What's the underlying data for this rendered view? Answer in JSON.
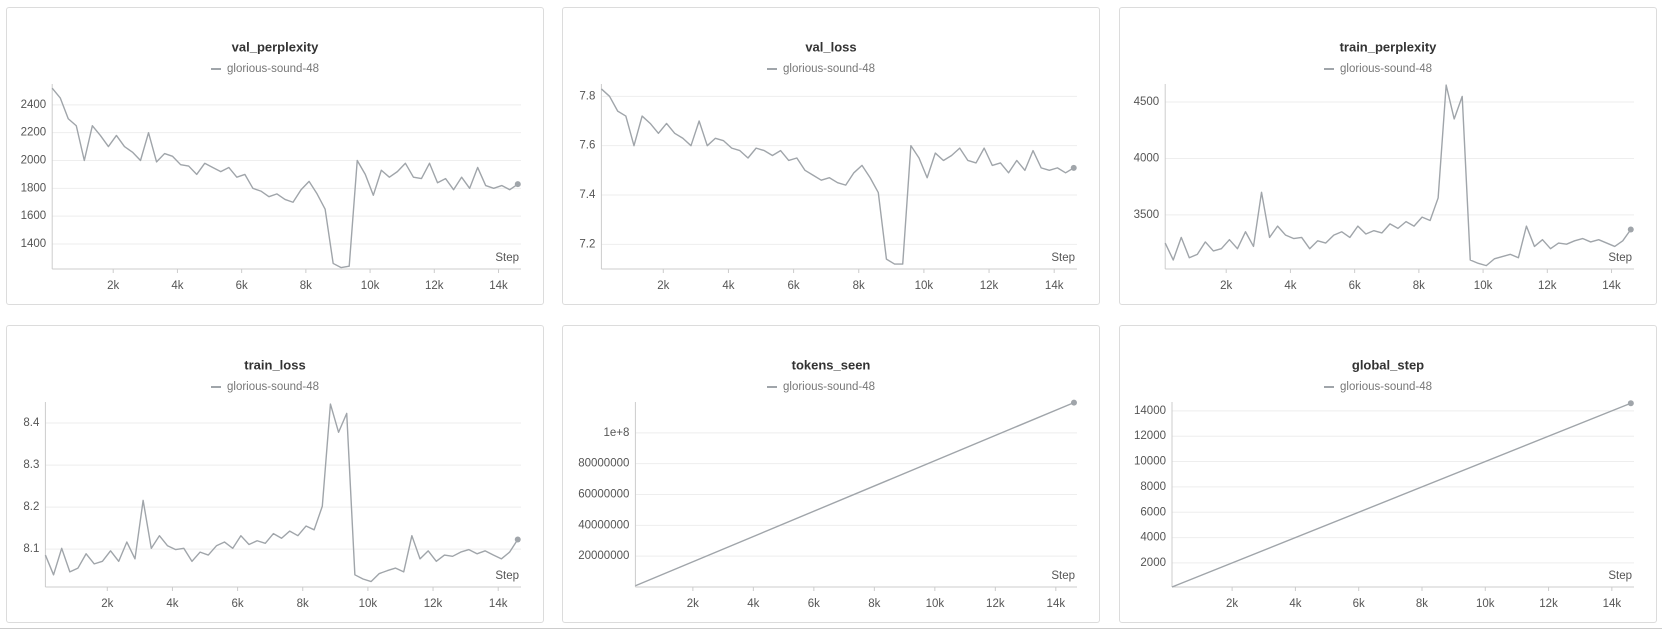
{
  "chart_data": [
    {
      "type": "line",
      "title": "val_perplexity",
      "x_label": "Step",
      "x": [
        100,
        350,
        600,
        850,
        1100,
        1350,
        1600,
        1850,
        2100,
        2350,
        2600,
        2850,
        3100,
        3350,
        3600,
        3850,
        4100,
        4350,
        4600,
        4850,
        5100,
        5350,
        5600,
        5850,
        6100,
        6350,
        6600,
        6850,
        7100,
        7350,
        7600,
        7850,
        8100,
        8350,
        8600,
        8850,
        9100,
        9350,
        9600,
        9850,
        10100,
        10350,
        10600,
        10850,
        11100,
        11350,
        11600,
        11850,
        12100,
        12350,
        12600,
        12850,
        13100,
        13350,
        13600,
        13850,
        14100,
        14350,
        14600
      ],
      "series": [
        {
          "name": "glorious-sound-48",
          "color": "#a0a5aa",
          "values": [
            2520,
            2450,
            2300,
            2250,
            2000,
            2250,
            2180,
            2100,
            2180,
            2100,
            2060,
            2000,
            2200,
            1990,
            2050,
            2030,
            1970,
            1960,
            1900,
            1980,
            1950,
            1920,
            1950,
            1880,
            1900,
            1800,
            1780,
            1740,
            1760,
            1720,
            1700,
            1790,
            1850,
            1760,
            1650,
            1260,
            1230,
            1240,
            2000,
            1900,
            1750,
            1930,
            1880,
            1920,
            1980,
            1880,
            1870,
            1980,
            1840,
            1870,
            1790,
            1880,
            1800,
            1950,
            1820,
            1800,
            1820,
            1790,
            1830
          ]
        }
      ],
      "xlim": [
        100,
        14700
      ],
      "xticks": [
        {
          "value": 2000,
          "label": "2k"
        },
        {
          "value": 4000,
          "label": "4k"
        },
        {
          "value": 6000,
          "label": "6k"
        },
        {
          "value": 8000,
          "label": "8k"
        },
        {
          "value": 10000,
          "label": "10k"
        },
        {
          "value": 12000,
          "label": "12k"
        },
        {
          "value": 14000,
          "label": "14k"
        }
      ],
      "ylim": [
        1220,
        2550
      ],
      "yticks": [
        1400,
        1600,
        1800,
        2000,
        2200,
        2400
      ],
      "grid": true
    },
    {
      "type": "line",
      "title": "val_loss",
      "x_label": "Step",
      "x": [
        100,
        350,
        600,
        850,
        1100,
        1350,
        1600,
        1850,
        2100,
        2350,
        2600,
        2850,
        3100,
        3350,
        3600,
        3850,
        4100,
        4350,
        4600,
        4850,
        5100,
        5350,
        5600,
        5850,
        6100,
        6350,
        6600,
        6850,
        7100,
        7350,
        7600,
        7850,
        8100,
        8350,
        8600,
        8850,
        9100,
        9350,
        9600,
        9850,
        10100,
        10350,
        10600,
        10850,
        11100,
        11350,
        11600,
        11850,
        12100,
        12350,
        12600,
        12850,
        13100,
        13350,
        13600,
        13850,
        14100,
        14350,
        14600
      ],
      "series": [
        {
          "name": "glorious-sound-48",
          "color": "#a0a5aa",
          "values": [
            7.83,
            7.8,
            7.74,
            7.72,
            7.6,
            7.72,
            7.69,
            7.65,
            7.69,
            7.65,
            7.63,
            7.6,
            7.7,
            7.6,
            7.63,
            7.62,
            7.59,
            7.58,
            7.55,
            7.59,
            7.58,
            7.56,
            7.58,
            7.54,
            7.55,
            7.5,
            7.48,
            7.46,
            7.47,
            7.45,
            7.44,
            7.49,
            7.52,
            7.47,
            7.41,
            7.14,
            7.12,
            7.12,
            7.6,
            7.55,
            7.47,
            7.57,
            7.54,
            7.56,
            7.59,
            7.54,
            7.53,
            7.59,
            7.52,
            7.53,
            7.49,
            7.54,
            7.5,
            7.58,
            7.51,
            7.5,
            7.51,
            7.49,
            7.51
          ]
        }
      ],
      "xlim": [
        100,
        14700
      ],
      "xticks": [
        {
          "value": 2000,
          "label": "2k"
        },
        {
          "value": 4000,
          "label": "4k"
        },
        {
          "value": 6000,
          "label": "6k"
        },
        {
          "value": 8000,
          "label": "8k"
        },
        {
          "value": 10000,
          "label": "10k"
        },
        {
          "value": 12000,
          "label": "12k"
        },
        {
          "value": 14000,
          "label": "14k"
        }
      ],
      "ylim": [
        7.1,
        7.85
      ],
      "yticks": [
        7.2,
        7.4,
        7.6,
        7.8
      ],
      "grid": true
    },
    {
      "type": "line",
      "title": "train_perplexity",
      "x_label": "Step",
      "x": [
        100,
        350,
        600,
        850,
        1100,
        1350,
        1600,
        1850,
        2100,
        2350,
        2600,
        2850,
        3100,
        3350,
        3600,
        3850,
        4100,
        4350,
        4600,
        4850,
        5100,
        5350,
        5600,
        5850,
        6100,
        6350,
        6600,
        6850,
        7100,
        7350,
        7600,
        7850,
        8100,
        8350,
        8600,
        8850,
        9100,
        9350,
        9600,
        9850,
        10100,
        10350,
        10600,
        10850,
        11100,
        11350,
        11600,
        11850,
        12100,
        12350,
        12600,
        12850,
        13100,
        13350,
        13600,
        13850,
        14100,
        14350,
        14600
      ],
      "series": [
        {
          "name": "glorious-sound-48",
          "color": "#a0a5aa",
          "values": [
            3250,
            3100,
            3300,
            3120,
            3150,
            3260,
            3180,
            3200,
            3280,
            3200,
            3350,
            3220,
            3700,
            3300,
            3400,
            3320,
            3290,
            3300,
            3200,
            3270,
            3250,
            3320,
            3350,
            3300,
            3400,
            3330,
            3360,
            3340,
            3420,
            3380,
            3440,
            3400,
            3480,
            3450,
            3650,
            4650,
            4350,
            4550,
            3100,
            3070,
            3050,
            3110,
            3130,
            3150,
            3120,
            3400,
            3220,
            3280,
            3200,
            3250,
            3240,
            3270,
            3290,
            3260,
            3280,
            3250,
            3220,
            3270,
            3370
          ]
        }
      ],
      "xlim": [
        100,
        14700
      ],
      "xticks": [
        {
          "value": 2000,
          "label": "2k"
        },
        {
          "value": 4000,
          "label": "4k"
        },
        {
          "value": 6000,
          "label": "6k"
        },
        {
          "value": 8000,
          "label": "8k"
        },
        {
          "value": 10000,
          "label": "10k"
        },
        {
          "value": 12000,
          "label": "12k"
        },
        {
          "value": 14000,
          "label": "14k"
        }
      ],
      "ylim": [
        3020,
        4660
      ],
      "yticks": [
        3500,
        4000,
        4500
      ],
      "grid": true
    },
    {
      "type": "line",
      "title": "train_loss",
      "x_label": "Step",
      "x": [
        100,
        350,
        600,
        850,
        1100,
        1350,
        1600,
        1850,
        2100,
        2350,
        2600,
        2850,
        3100,
        3350,
        3600,
        3850,
        4100,
        4350,
        4600,
        4850,
        5100,
        5350,
        5600,
        5850,
        6100,
        6350,
        6600,
        6850,
        7100,
        7350,
        7600,
        7850,
        8100,
        8350,
        8600,
        8850,
        9100,
        9350,
        9600,
        9850,
        10100,
        10350,
        10600,
        10850,
        11100,
        11350,
        11600,
        11850,
        12100,
        12350,
        12600,
        12850,
        13100,
        13350,
        13600,
        13850,
        14100,
        14350,
        14600
      ],
      "series": [
        {
          "name": "glorious-sound-48",
          "color": "#a0a5aa",
          "values": [
            8.086,
            8.039,
            8.102,
            8.046,
            8.055,
            8.089,
            8.065,
            8.071,
            8.096,
            8.071,
            8.117,
            8.077,
            8.216,
            8.102,
            8.132,
            8.108,
            8.099,
            8.102,
            8.071,
            8.093,
            8.086,
            8.108,
            8.117,
            8.102,
            8.132,
            8.111,
            8.12,
            8.114,
            8.137,
            8.126,
            8.143,
            8.132,
            8.155,
            8.146,
            8.202,
            8.445,
            8.378,
            8.423,
            8.039,
            8.029,
            8.023,
            8.042,
            8.049,
            8.055,
            8.046,
            8.132,
            8.077,
            8.096,
            8.071,
            8.086,
            8.083,
            8.093,
            8.099,
            8.089,
            8.096,
            8.086,
            8.077,
            8.093,
            8.123
          ]
        }
      ],
      "xlim": [
        100,
        14700
      ],
      "xticks": [
        {
          "value": 2000,
          "label": "2k"
        },
        {
          "value": 4000,
          "label": "4k"
        },
        {
          "value": 6000,
          "label": "6k"
        },
        {
          "value": 8000,
          "label": "8k"
        },
        {
          "value": 10000,
          "label": "10k"
        },
        {
          "value": 12000,
          "label": "12k"
        },
        {
          "value": 14000,
          "label": "14k"
        }
      ],
      "ylim": [
        8.01,
        8.45
      ],
      "yticks": [
        8.1,
        8.2,
        8.3,
        8.4
      ],
      "grid": true
    },
    {
      "type": "line",
      "title": "tokens_seen",
      "x_label": "Step",
      "x": [
        100,
        14600
      ],
      "series": [
        {
          "name": "glorious-sound-48",
          "color": "#a0a5aa",
          "values": [
            819200,
            119603200
          ]
        }
      ],
      "xlim": [
        100,
        14700
      ],
      "xticks": [
        {
          "value": 2000,
          "label": "2k"
        },
        {
          "value": 4000,
          "label": "4k"
        },
        {
          "value": 6000,
          "label": "6k"
        },
        {
          "value": 8000,
          "label": "8k"
        },
        {
          "value": 10000,
          "label": "10k"
        },
        {
          "value": 12000,
          "label": "12k"
        },
        {
          "value": 14000,
          "label": "14k"
        }
      ],
      "ylim": [
        0,
        120000000
      ],
      "yticks": [
        20000000,
        40000000,
        60000000,
        80000000,
        {
          "value": 100000000,
          "label": "1e+8"
        }
      ],
      "grid": true
    },
    {
      "type": "line",
      "title": "global_step",
      "x_label": "Step",
      "x": [
        100,
        14600
      ],
      "series": [
        {
          "name": "glorious-sound-48",
          "color": "#a0a5aa",
          "values": [
            100,
            14600
          ]
        }
      ],
      "xlim": [
        100,
        14700
      ],
      "xticks": [
        {
          "value": 2000,
          "label": "2k"
        },
        {
          "value": 4000,
          "label": "4k"
        },
        {
          "value": 6000,
          "label": "6k"
        },
        {
          "value": 8000,
          "label": "8k"
        },
        {
          "value": 10000,
          "label": "10k"
        },
        {
          "value": 12000,
          "label": "12k"
        },
        {
          "value": 14000,
          "label": "14k"
        }
      ],
      "ylim": [
        100,
        14700
      ],
      "yticks": [
        2000,
        4000,
        6000,
        8000,
        10000,
        12000,
        14000
      ],
      "grid": true
    }
  ]
}
